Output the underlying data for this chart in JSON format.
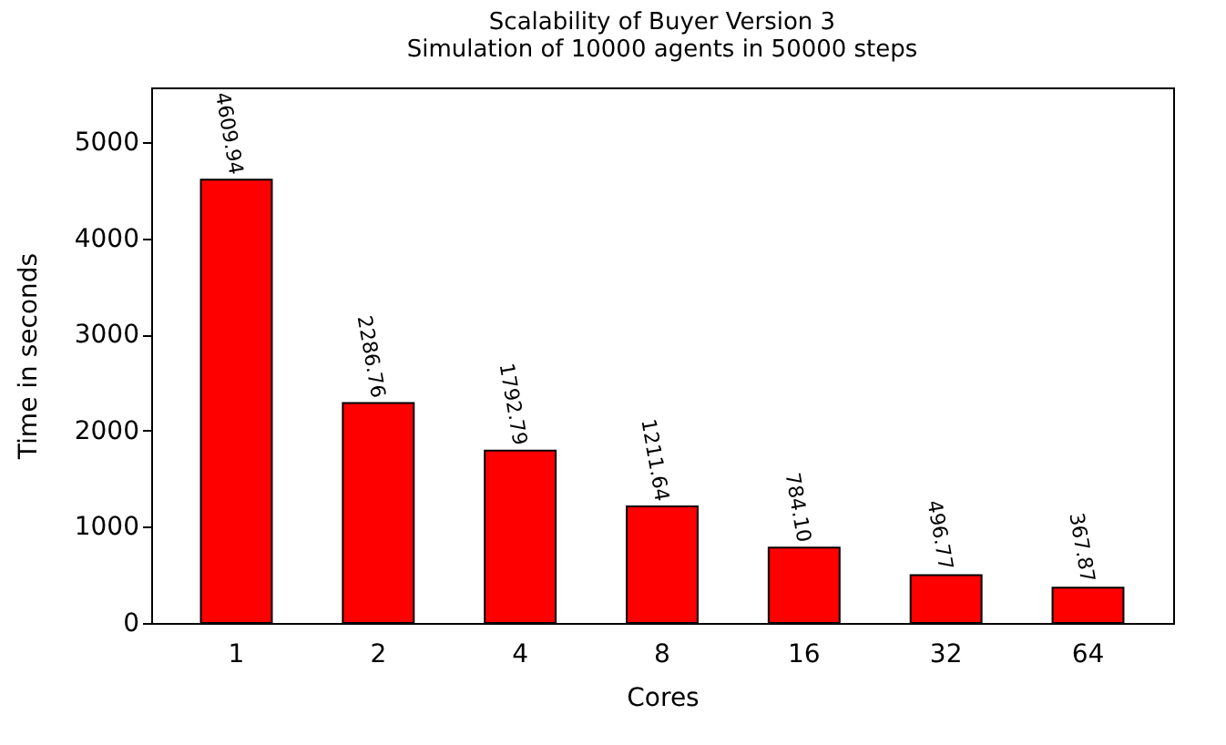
{
  "chart_data": {
    "type": "bar",
    "title": "Scalability of Buyer Version 3",
    "subtitle": "Simulation of 10000 agents in 50000 steps",
    "xlabel": "Cores",
    "ylabel": "Time in seconds",
    "categories": [
      "1",
      "2",
      "4",
      "8",
      "16",
      "32",
      "64"
    ],
    "series": [
      {
        "color": "#ff0000",
        "values": [
          4609.94,
          2286.76,
          1792.79,
          1211.64,
          784.1,
          496.77,
          367.87
        ]
      }
    ],
    "value_labels": [
      "4609.94",
      "2286.76",
      "1792.79",
      "1211.64",
      "784.10",
      "496.77",
      "367.87"
    ],
    "ylim": [
      0,
      5570
    ],
    "yticks": [
      0,
      1000,
      2000,
      3000,
      4000,
      5000
    ],
    "grid": false
  }
}
